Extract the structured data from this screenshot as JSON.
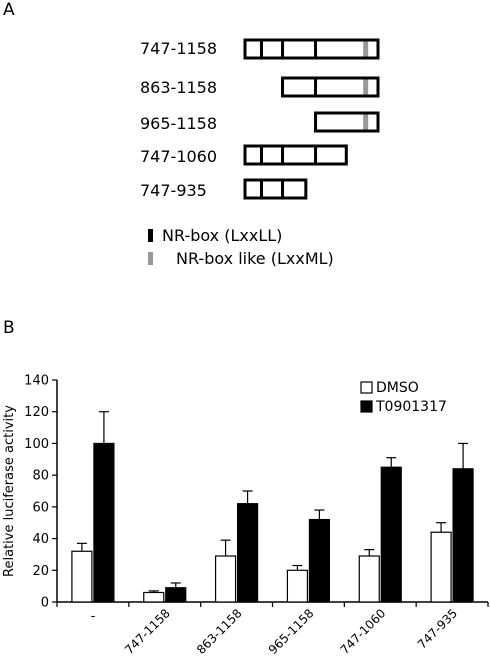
{
  "panel_a": {
    "label": "A",
    "constructs": [
      {
        "label": "747-1158",
        "start": 747,
        "end": 1158
      },
      {
        "label": "863-1158",
        "start": 863,
        "end": 1158
      },
      {
        "label": "965-1158",
        "start": 965,
        "end": 1158
      },
      {
        "label": "747-1060",
        "start": 747,
        "end": 1060
      },
      {
        "label": "747-935",
        "start": 747,
        "end": 935
      }
    ],
    "nr_box_positions": [
      798,
      863,
      965
    ],
    "nr_box_like_positions": [
      1120
    ],
    "legend": [
      {
        "label": "NR-box (LxxLL)",
        "color": "#000000"
      },
      {
        "label": "NR-box like (LxxML)",
        "color": "#999999"
      }
    ]
  },
  "panel_b": {
    "label": "B"
  },
  "chart_data": {
    "type": "bar",
    "ylabel": "Relative luciferase activity",
    "xlabel": "",
    "ylim": [
      0,
      140
    ],
    "yticks": [
      0,
      20,
      40,
      60,
      80,
      100,
      120,
      140
    ],
    "categories": [
      "-",
      "747-1158",
      "863-1158",
      "965-1158",
      "747-1060",
      "747-935"
    ],
    "series": [
      {
        "name": "DMSO",
        "color": "#ffffff",
        "values": [
          32,
          6,
          29,
          20,
          29,
          44
        ],
        "errors": [
          5,
          1,
          10,
          3,
          4,
          6
        ]
      },
      {
        "name": "T0901317",
        "color": "#000000",
        "values": [
          100,
          9,
          62,
          52,
          85,
          84
        ],
        "errors": [
          20,
          3,
          8,
          6,
          6,
          16
        ]
      }
    ],
    "legend_position": "top-right",
    "grid": false
  }
}
